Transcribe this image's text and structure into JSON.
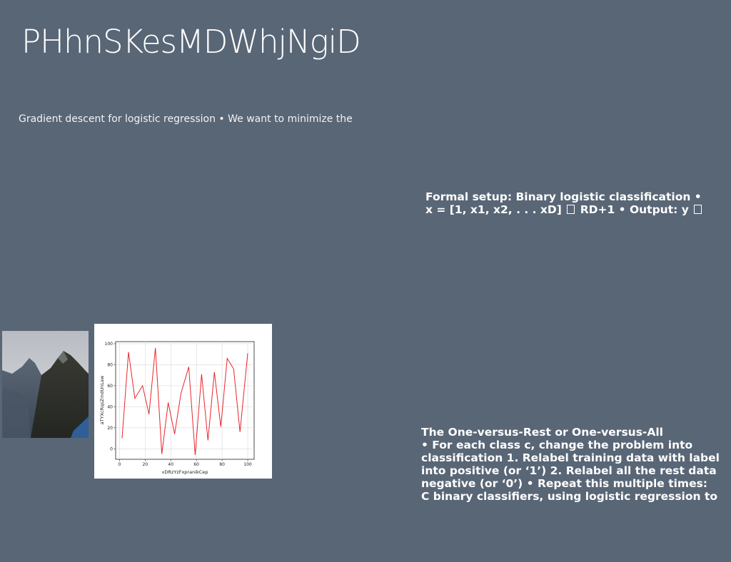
{
  "slide": {
    "title": "PHhnSKesMDWhjNgiD",
    "subtitle": "Gradient descent for logistic regression • We want to minimize the",
    "block1": {
      "line1": "Formal setup: Binary logistic classification •",
      "line2_a": "x = [1, x1, x2, . . . xD]",
      "line2_b": "RD+1 • Output: y"
    },
    "block2": {
      "lines": [
        "The One-versus-Rest or One-versus-All",
        "• For each class c, change the problem into",
        "classification 1. Relabel training data with label",
        "into positive (or ‘1’) 2. Relabel all the rest data",
        "negative (or ‘0’) • Repeat this multiple times:",
        "C binary classifiers, using logistic regression to"
      ]
    }
  },
  "photo": {
    "name": "mountain-photo"
  },
  "chart_data": {
    "type": "line",
    "title": "",
    "xlabel": "vDRzYzFxpranikCep",
    "ylabel": "aTYXcRqsZmdUnLaw",
    "xlim": [
      -3,
      105
    ],
    "ylim": [
      -10,
      102
    ],
    "xticks": [
      0,
      20,
      40,
      60,
      80,
      100
    ],
    "yticks": [
      0,
      20,
      40,
      60,
      80,
      100
    ],
    "grid": true,
    "series": [
      {
        "color": "#e8262b",
        "x": [
          2,
          7,
          12,
          18,
          23,
          28,
          33,
          38,
          43,
          48,
          54,
          59,
          64,
          69,
          74,
          79,
          84,
          89,
          94,
          100
        ],
        "y": [
          10,
          92,
          48,
          60,
          33,
          96,
          -5,
          44,
          14,
          53,
          78,
          -6,
          71,
          8,
          73,
          21,
          86,
          76,
          16,
          91
        ]
      }
    ]
  }
}
